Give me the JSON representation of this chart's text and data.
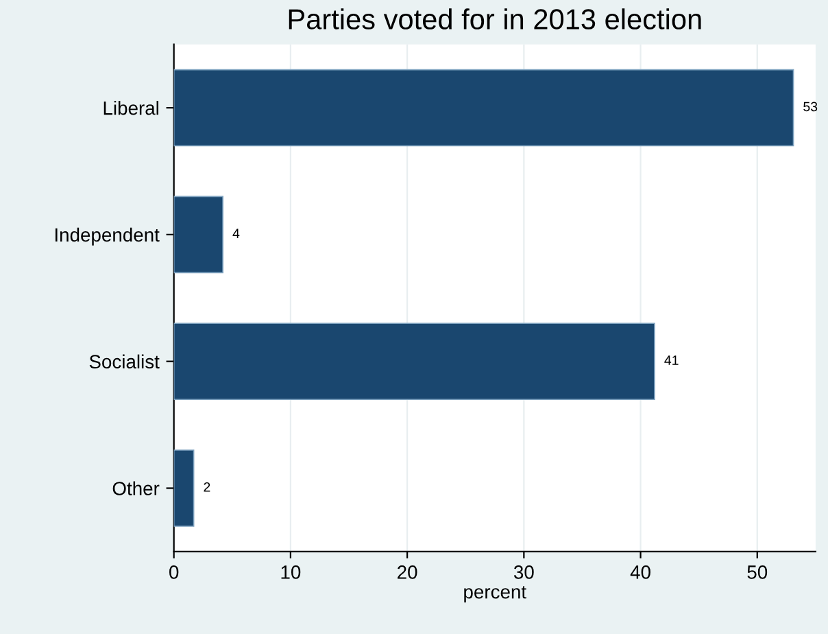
{
  "chart_data": {
    "type": "bar",
    "orientation": "horizontal",
    "title": "Parties voted for in 2013 election",
    "xlabel": "percent",
    "categories": [
      "Liberal",
      "Independent",
      "Socialist",
      "Other"
    ],
    "values": [
      53.1,
      4.2,
      41.2,
      1.7
    ],
    "value_labels": [
      "53",
      "4",
      "41",
      "2"
    ],
    "color": "#1a476f",
    "xlim": [
      0,
      55
    ],
    "xticks": [
      0,
      10,
      20,
      30,
      40,
      50
    ],
    "grid": "x"
  }
}
